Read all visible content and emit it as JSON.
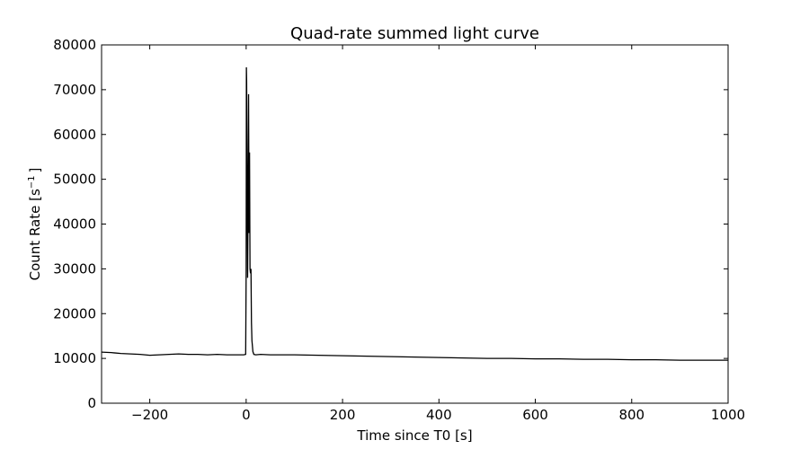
{
  "chart_data": {
    "type": "line",
    "title": "Quad-rate summed light curve",
    "xlabel": "Time since T0 [s]",
    "ylabel_main": "Count Rate [s",
    "ylabel_sup": "−1",
    "ylabel_end": "]",
    "xlim": [
      -300,
      1000
    ],
    "ylim": [
      0,
      80000
    ],
    "xticks": [
      -200,
      0,
      200,
      400,
      600,
      800,
      1000
    ],
    "xtick_labels": [
      "−200",
      "0",
      "200",
      "400",
      "600",
      "800",
      "1000"
    ],
    "yticks": [
      0,
      10000,
      20000,
      30000,
      40000,
      50000,
      60000,
      70000,
      80000
    ],
    "ytick_labels": [
      "0",
      "10000",
      "20000",
      "30000",
      "40000",
      "50000",
      "60000",
      "70000",
      "80000"
    ],
    "grid": false,
    "series": [
      {
        "color": "#000000",
        "x": [
          -300,
          -280,
          -260,
          -240,
          -220,
          -200,
          -180,
          -160,
          -140,
          -120,
          -100,
          -80,
          -60,
          -40,
          -20,
          -5,
          -1,
          0,
          0.5,
          1,
          2,
          3,
          4,
          5,
          6,
          7,
          8,
          9,
          10,
          11,
          12,
          14,
          16,
          20,
          30,
          50,
          100,
          150,
          200,
          250,
          300,
          350,
          400,
          450,
          500,
          550,
          600,
          650,
          700,
          750,
          800,
          850,
          900,
          950,
          1000
        ],
        "y": [
          11400,
          11300,
          11100,
          11000,
          10900,
          10700,
          10800,
          10900,
          11000,
          10900,
          10900,
          10800,
          10900,
          10800,
          10800,
          10800,
          10900,
          30000,
          75000,
          72000,
          50000,
          28000,
          45000,
          69000,
          38000,
          56000,
          30000,
          29000,
          30000,
          18000,
          14000,
          11500,
          10900,
          10800,
          10900,
          10800,
          10800,
          10700,
          10600,
          10500,
          10400,
          10300,
          10200,
          10100,
          10000,
          10000,
          9900,
          9900,
          9800,
          9800,
          9700,
          9700,
          9600,
          9600,
          9600
        ]
      }
    ]
  }
}
